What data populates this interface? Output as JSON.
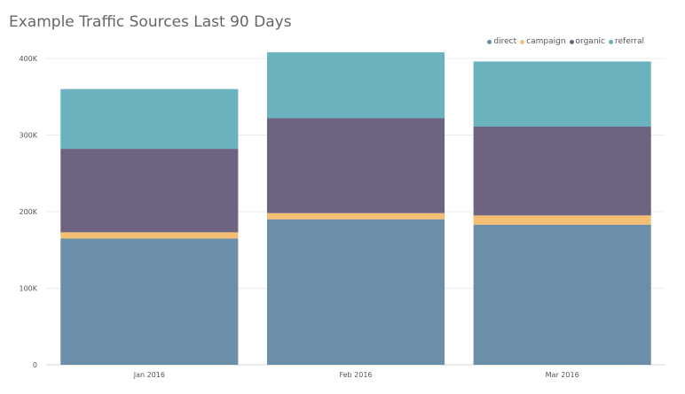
{
  "chart_data": {
    "type": "bar",
    "stacked": true,
    "title": "Example Traffic Sources Last 90 Days",
    "categories": [
      "Jan 2016",
      "Feb 2016",
      "Mar 2016"
    ],
    "series": [
      {
        "name": "direct",
        "color": "#6b8fa9",
        "values": [
          165000,
          190000,
          183000
        ]
      },
      {
        "name": "campaign",
        "color": "#f4bf73",
        "values": [
          8000,
          8000,
          12000
        ]
      },
      {
        "name": "organic",
        "color": "#6e6482",
        "values": [
          109000,
          124000,
          116000
        ]
      },
      {
        "name": "referral",
        "color": "#6ab2bd",
        "values": [
          78000,
          86000,
          85000
        ]
      }
    ],
    "y_ticks": [
      0,
      100000,
      200000,
      300000,
      400000
    ],
    "y_tick_labels": [
      "0",
      "100K",
      "200K",
      "300K",
      "400K"
    ],
    "ylim": [
      0,
      400000
    ],
    "xlabel": "",
    "ylabel": "",
    "grid": true,
    "legend_position": "top-right"
  }
}
